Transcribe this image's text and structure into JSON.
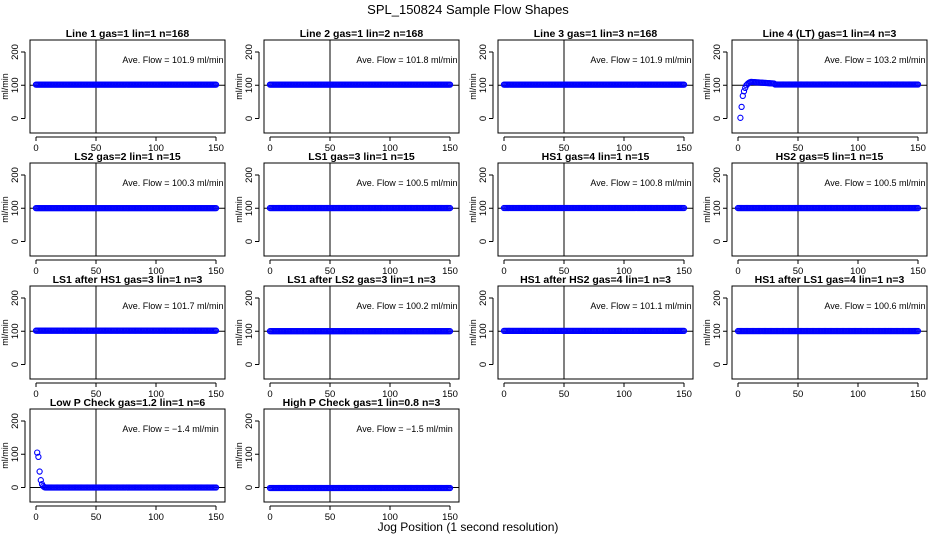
{
  "figure": {
    "title": "SPL_150824  Sample Flow Shapes",
    "xlabel": "Jog Position (1 second resolution)",
    "point_color": "#0000ff",
    "annotation_prefix": "Ave. Flow = ",
    "annotation_unit": "ml/min"
  },
  "chart_data": [
    {
      "type": "scatter",
      "title": "Line 1 gas=1 lin=1 n=168",
      "ylabel": "ml/min",
      "xlim": [
        0,
        150
      ],
      "ylim": [
        0,
        200
      ],
      "xticks": [
        0,
        50,
        100,
        150
      ],
      "yticks": [
        0,
        100,
        200
      ],
      "vline": 50,
      "hline": 100,
      "ave_flow": "101.9",
      "shape": "flat",
      "level": 101.9
    },
    {
      "type": "scatter",
      "title": "Line 2 gas=1 lin=2 n=168",
      "ylabel": "ml/min",
      "xlim": [
        0,
        150
      ],
      "ylim": [
        0,
        200
      ],
      "xticks": [
        0,
        50,
        100,
        150
      ],
      "yticks": [
        0,
        100,
        200
      ],
      "vline": 50,
      "hline": 100,
      "ave_flow": "101.8",
      "shape": "flat",
      "level": 101.8
    },
    {
      "type": "scatter",
      "title": "Line 3 gas=1 lin=3 n=168",
      "ylabel": "ml/min",
      "xlim": [
        0,
        150
      ],
      "ylim": [
        0,
        200
      ],
      "xticks": [
        0,
        50,
        100,
        150
      ],
      "yticks": [
        0,
        100,
        200
      ],
      "vline": 50,
      "hline": 100,
      "ave_flow": "101.9",
      "shape": "flat",
      "level": 101.9
    },
    {
      "type": "scatter",
      "title": "Line 4 (LT) gas=1 lin=4 n=3",
      "ylabel": "ml/min",
      "xlim": [
        0,
        150
      ],
      "ylim": [
        0,
        200
      ],
      "xticks": [
        0,
        50,
        100,
        150
      ],
      "yticks": [
        0,
        100,
        200
      ],
      "vline": 50,
      "hline": 100,
      "ave_flow": "103.2",
      "shape": "rise",
      "level": 103.2
    },
    {
      "type": "scatter",
      "title": "LS2 gas=2 lin=1 n=15",
      "ylabel": "ml/min",
      "xlim": [
        0,
        150
      ],
      "ylim": [
        0,
        200
      ],
      "xticks": [
        0,
        50,
        100,
        150
      ],
      "yticks": [
        0,
        100,
        200
      ],
      "vline": 50,
      "hline": 100,
      "ave_flow": "100.3",
      "shape": "flat",
      "level": 100.3
    },
    {
      "type": "scatter",
      "title": "LS1 gas=3 lin=1 n=15",
      "ylabel": "ml/min",
      "xlim": [
        0,
        150
      ],
      "ylim": [
        0,
        200
      ],
      "xticks": [
        0,
        50,
        100,
        150
      ],
      "yticks": [
        0,
        100,
        200
      ],
      "vline": 50,
      "hline": 100,
      "ave_flow": "100.5",
      "shape": "flat",
      "level": 100.5
    },
    {
      "type": "scatter",
      "title": "HS1 gas=4 lin=1 n=15",
      "ylabel": "ml/min",
      "xlim": [
        0,
        150
      ],
      "ylim": [
        0,
        200
      ],
      "xticks": [
        0,
        50,
        100,
        150
      ],
      "yticks": [
        0,
        100,
        200
      ],
      "vline": 50,
      "hline": 100,
      "ave_flow": "100.8",
      "shape": "flat",
      "level": 100.8
    },
    {
      "type": "scatter",
      "title": "HS2 gas=5 lin=1 n=15",
      "ylabel": "ml/min",
      "xlim": [
        0,
        150
      ],
      "ylim": [
        0,
        200
      ],
      "xticks": [
        0,
        50,
        100,
        150
      ],
      "yticks": [
        0,
        100,
        200
      ],
      "vline": 50,
      "hline": 100,
      "ave_flow": "100.5",
      "shape": "flat",
      "level": 100.5
    },
    {
      "type": "scatter",
      "title": "LS1 after HS1 gas=3 lin=1 n=3",
      "ylabel": "ml/min",
      "xlim": [
        0,
        150
      ],
      "ylim": [
        0,
        200
      ],
      "xticks": [
        0,
        50,
        100,
        150
      ],
      "yticks": [
        0,
        100,
        200
      ],
      "vline": 50,
      "hline": 100,
      "ave_flow": "101.7",
      "shape": "flat",
      "level": 101.7
    },
    {
      "type": "scatter",
      "title": "LS1 after LS2 gas=3 lin=1 n=3",
      "ylabel": "ml/min",
      "xlim": [
        0,
        150
      ],
      "ylim": [
        0,
        200
      ],
      "xticks": [
        0,
        50,
        100,
        150
      ],
      "yticks": [
        0,
        100,
        200
      ],
      "vline": 50,
      "hline": 100,
      "ave_flow": "100.2",
      "shape": "flat",
      "level": 100.2
    },
    {
      "type": "scatter",
      "title": "HS1 after HS2 gas=4 lin=1 n=3",
      "ylabel": "ml/min",
      "xlim": [
        0,
        150
      ],
      "ylim": [
        0,
        200
      ],
      "xticks": [
        0,
        50,
        100,
        150
      ],
      "yticks": [
        0,
        100,
        200
      ],
      "vline": 50,
      "hline": 100,
      "ave_flow": "101.1",
      "shape": "flat",
      "level": 101.1
    },
    {
      "type": "scatter",
      "title": "HS1 after LS1 gas=4 lin=1 n=3",
      "ylabel": "ml/min",
      "xlim": [
        0,
        150
      ],
      "ylim": [
        0,
        200
      ],
      "xticks": [
        0,
        50,
        100,
        150
      ],
      "yticks": [
        0,
        100,
        200
      ],
      "vline": 50,
      "hline": 100,
      "ave_flow": "100.6",
      "shape": "flat",
      "level": 100.6
    },
    {
      "type": "scatter",
      "title": "Low P Check gas=1.2 lin=1 n=6",
      "ylabel": "ml/min",
      "xlim": [
        0,
        150
      ],
      "ylim": [
        0,
        200
      ],
      "xticks": [
        0,
        50,
        100,
        150
      ],
      "yticks": [
        0,
        100,
        200
      ],
      "vline": 50,
      "hline": 0,
      "ave_flow": "−1.4",
      "shape": "decay",
      "level": -1.4
    },
    {
      "type": "scatter",
      "title": "High P Check gas=1 lin=0.8 n=3",
      "ylabel": "ml/min",
      "xlim": [
        0,
        150
      ],
      "ylim": [
        0,
        200
      ],
      "xticks": [
        0,
        50,
        100,
        150
      ],
      "yticks": [
        0,
        100,
        200
      ],
      "vline": 50,
      "hline": 0,
      "ave_flow": "−1.5",
      "shape": "flat",
      "level": -1.5
    }
  ]
}
